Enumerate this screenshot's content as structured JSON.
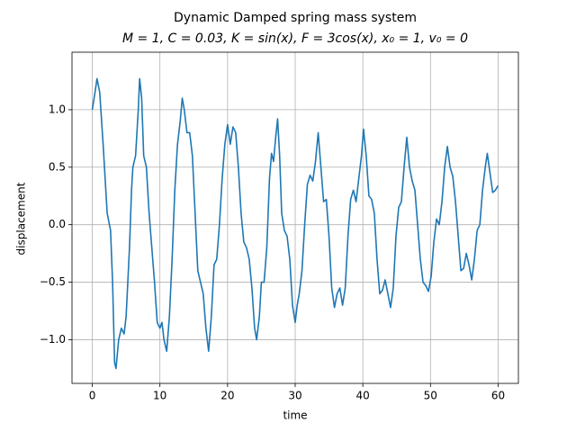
{
  "chart_data": {
    "type": "line",
    "title": "Dynamic Damped spring mass system",
    "subtitle": "M = 1,  C = 0.03,  K = sin(x),  F = 3cos(x),  x₀ = 1, v₀ = 0",
    "xlabel": "time",
    "ylabel": "displacement",
    "xlim": [
      -3,
      63
    ],
    "ylim": [
      -1.38,
      1.5
    ],
    "xticks": [
      0,
      10,
      20,
      30,
      40,
      50,
      60
    ],
    "yticks": [
      {
        "value": -1,
        "label": "−1.0"
      },
      {
        "value": -0.5,
        "label": "−0.5"
      },
      {
        "value": 0,
        "label": "0.0"
      },
      0.5,
      {
        "value": 1,
        "label": "1.0"
      }
    ],
    "grid": true,
    "series": [
      {
        "color": "#1f77b4",
        "x": [
          0,
          0.4,
          0.7,
          1.1,
          1.6,
          2.2,
          2.7,
          3.0,
          3.3,
          3.5,
          3.9,
          4.3,
          4.7,
          5.0,
          5.5,
          5.8,
          6.0,
          6.4,
          6.8,
          7.0,
          7.3,
          7.6,
          8.0,
          8.4,
          8.8,
          9.2,
          9.6,
          10.0,
          10.3,
          10.6,
          11.0,
          11.4,
          11.8,
          12.2,
          12.6,
          13.0,
          13.3,
          13.6,
          14.0,
          14.4,
          14.8,
          15.2,
          15.6,
          16.0,
          16.4,
          16.8,
          17.2,
          17.6,
          18.0,
          18.4,
          18.8,
          19.2,
          19.6,
          20.0,
          20.4,
          20.8,
          21.2,
          21.6,
          22.0,
          22.4,
          22.8,
          23.2,
          23.6,
          24.0,
          24.3,
          24.7,
          25.0,
          25.4,
          25.8,
          26.2,
          26.5,
          26.8,
          27.1,
          27.4,
          27.7,
          28.0,
          28.4,
          28.8,
          29.2,
          29.6,
          30.0,
          30.3,
          30.6,
          31.0,
          31.4,
          31.8,
          32.2,
          32.6,
          33.0,
          33.4,
          33.8,
          34.2,
          34.6,
          35.0,
          35.4,
          35.8,
          36.2,
          36.6,
          37.0,
          37.4,
          37.8,
          38.2,
          38.6,
          39.0,
          39.4,
          39.8,
          40.1,
          40.5,
          40.9,
          41.3,
          41.7,
          42.1,
          42.5,
          42.9,
          43.3,
          43.7,
          44.1,
          44.5,
          44.9,
          45.3,
          45.7,
          46.1,
          46.5,
          46.9,
          47.3,
          47.7,
          48.1,
          48.5,
          48.9,
          49.3,
          49.7,
          50.1,
          50.5,
          50.9,
          51.3,
          51.7,
          52.1,
          52.5,
          52.9,
          53.3,
          53.7,
          54.1,
          54.5,
          54.9,
          55.3,
          55.7,
          56.1,
          56.5,
          56.9,
          57.3,
          57.7,
          58.1,
          58.4,
          58.8,
          59.2,
          59.6,
          60
        ],
        "values": [
          1.0,
          1.15,
          1.27,
          1.15,
          0.7,
          0.1,
          -0.05,
          -0.5,
          -1.2,
          -1.25,
          -1.0,
          -0.9,
          -0.95,
          -0.8,
          -0.2,
          0.3,
          0.5,
          0.6,
          1.0,
          1.27,
          1.1,
          0.6,
          0.5,
          0.1,
          -0.2,
          -0.5,
          -0.85,
          -0.9,
          -0.85,
          -1.0,
          -1.1,
          -0.8,
          -0.3,
          0.3,
          0.7,
          0.9,
          1.1,
          1.0,
          0.8,
          0.8,
          0.6,
          0.1,
          -0.4,
          -0.5,
          -0.6,
          -0.9,
          -1.1,
          -0.8,
          -0.35,
          -0.3,
          0.0,
          0.4,
          0.7,
          0.87,
          0.7,
          0.85,
          0.8,
          0.5,
          0.1,
          -0.15,
          -0.2,
          -0.3,
          -0.55,
          -0.9,
          -1.0,
          -0.8,
          -0.5,
          -0.5,
          -0.2,
          0.4,
          0.62,
          0.55,
          0.75,
          0.92,
          0.6,
          0.1,
          -0.05,
          -0.1,
          -0.3,
          -0.7,
          -0.85,
          -0.7,
          -0.6,
          -0.4,
          0.0,
          0.35,
          0.43,
          0.38,
          0.55,
          0.8,
          0.5,
          0.2,
          0.22,
          -0.1,
          -0.55,
          -0.72,
          -0.6,
          -0.55,
          -0.7,
          -0.55,
          -0.1,
          0.22,
          0.3,
          0.2,
          0.4,
          0.6,
          0.83,
          0.6,
          0.25,
          0.22,
          0.1,
          -0.3,
          -0.6,
          -0.57,
          -0.48,
          -0.6,
          -0.72,
          -0.55,
          -0.1,
          0.15,
          0.2,
          0.5,
          0.76,
          0.5,
          0.38,
          0.3,
          0.0,
          -0.3,
          -0.5,
          -0.53,
          -0.58,
          -0.45,
          -0.15,
          0.05,
          0.0,
          0.2,
          0.5,
          0.68,
          0.5,
          0.42,
          0.2,
          -0.1,
          -0.4,
          -0.38,
          -0.25,
          -0.35,
          -0.48,
          -0.3,
          -0.05,
          0.0,
          0.3,
          0.5,
          0.62,
          0.45,
          0.28,
          0.3,
          0.34
        ]
      }
    ]
  }
}
